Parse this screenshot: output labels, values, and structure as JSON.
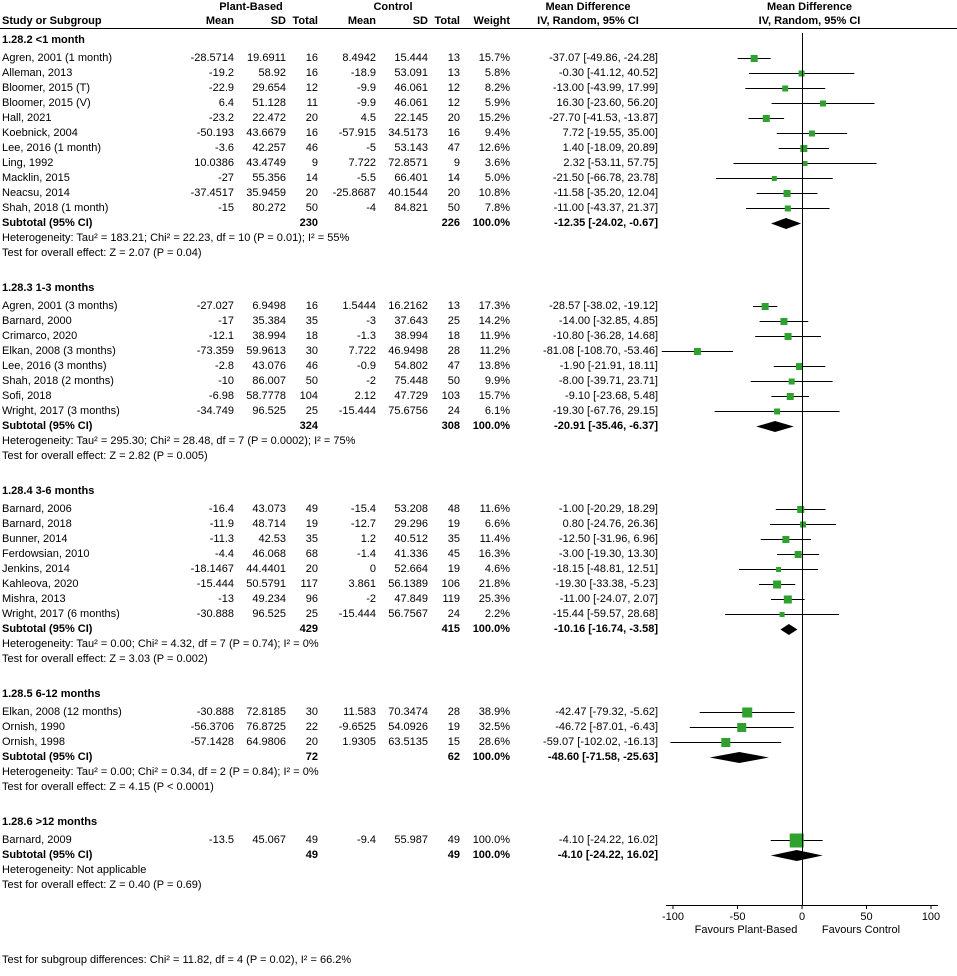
{
  "header": {
    "study": "Study or Subgroup",
    "group1": "Plant-Based",
    "group2": "Control",
    "mean": "Mean",
    "sd": "SD",
    "total": "Total",
    "weight": "Weight",
    "md": "Mean Difference",
    "ci": "IV, Random, 95% CI"
  },
  "chart_data": {
    "type": "forest",
    "marker_color": "#2EA12E",
    "diamond_color": "#000000",
    "axis": {
      "min": -100,
      "max": 100,
      "ticks": [
        -100,
        -50,
        0,
        50,
        100
      ]
    },
    "favours_left": "Favours Plant-Based",
    "favours_right": "Favours Control",
    "subgroups": [
      {
        "label": "1.28.2 <1 month",
        "studies": [
          {
            "name": "Agren, 2001 (1 month)",
            "cells": [
              "-28.5714",
              "19.6911",
              "16",
              "8.4942",
              "15.444",
              "13",
              "15.7%",
              "-37.07 [-49.86, -24.28]"
            ],
            "est": -37.07,
            "lo": -49.86,
            "hi": -24.28,
            "w": 15.7
          },
          {
            "name": "Alleman, 2013",
            "cells": [
              "-19.2",
              "58.92",
              "16",
              "-18.9",
              "53.091",
              "13",
              "5.8%",
              "-0.30 [-41.12, 40.52]"
            ],
            "est": -0.3,
            "lo": -41.12,
            "hi": 40.52,
            "w": 5.8
          },
          {
            "name": "Bloomer, 2015 (T)",
            "cells": [
              "-22.9",
              "29.654",
              "12",
              "-9.9",
              "46.061",
              "12",
              "8.2%",
              "-13.00 [-43.99, 17.99]"
            ],
            "est": -13.0,
            "lo": -43.99,
            "hi": 17.99,
            "w": 8.2
          },
          {
            "name": "Bloomer, 2015 (V)",
            "cells": [
              "6.4",
              "51.128",
              "11",
              "-9.9",
              "46.061",
              "12",
              "5.9%",
              "16.30 [-23.60, 56.20]"
            ],
            "est": 16.3,
            "lo": -23.6,
            "hi": 56.2,
            "w": 5.9
          },
          {
            "name": "Hall, 2021",
            "cells": [
              "-23.2",
              "22.472",
              "20",
              "4.5",
              "22.145",
              "20",
              "15.2%",
              "-27.70 [-41.53, -13.87]"
            ],
            "est": -27.7,
            "lo": -41.53,
            "hi": -13.87,
            "w": 15.2
          },
          {
            "name": "Koebnick, 2004",
            "cells": [
              "-50.193",
              "43.6679",
              "16",
              "-57.915",
              "34.5173",
              "16",
              "9.4%",
              "7.72 [-19.55, 35.00]"
            ],
            "est": 7.72,
            "lo": -19.55,
            "hi": 35.0,
            "w": 9.4
          },
          {
            "name": "Lee, 2016 (1 month)",
            "cells": [
              "-3.6",
              "42.257",
              "46",
              "-5",
              "53.143",
              "47",
              "12.6%",
              "1.40 [-18.09, 20.89]"
            ],
            "est": 1.4,
            "lo": -18.09,
            "hi": 20.89,
            "w": 12.6
          },
          {
            "name": "Ling, 1992",
            "cells": [
              "10.0386",
              "43.4749",
              "9",
              "7.722",
              "72.8571",
              "9",
              "3.6%",
              "2.32 [-53.11, 57.75]"
            ],
            "est": 2.32,
            "lo": -53.11,
            "hi": 57.75,
            "w": 3.6
          },
          {
            "name": "Macklin, 2015",
            "cells": [
              "-27",
              "55.356",
              "14",
              "-5.5",
              "66.401",
              "14",
              "5.0%",
              "-21.50 [-66.78, 23.78]"
            ],
            "est": -21.5,
            "lo": -66.78,
            "hi": 23.78,
            "w": 5.0
          },
          {
            "name": "Neacsu, 2014",
            "cells": [
              "-37.4517",
              "35.9459",
              "20",
              "-25.8687",
              "40.1544",
              "20",
              "10.8%",
              "-11.58 [-35.20, 12.04]"
            ],
            "est": -11.58,
            "lo": -35.2,
            "hi": 12.04,
            "w": 10.8
          },
          {
            "name": "Shah, 2018 (1 month)",
            "cells": [
              "-15",
              "80.272",
              "50",
              "-4",
              "84.821",
              "50",
              "7.8%",
              "-11.00 [-43.37, 21.37]"
            ],
            "est": -11.0,
            "lo": -43.37,
            "hi": 21.37,
            "w": 7.8
          }
        ],
        "subtotal": {
          "label": "Subtotal (95% CI)",
          "n1": "230",
          "n2": "226",
          "weight": "100.0%",
          "md": "-12.35 [-24.02, -0.67]",
          "est": -12.35,
          "lo": -24.02,
          "hi": -0.67
        },
        "heterogeneity": "Heterogeneity: Tau² = 183.21; Chi² = 22.23, df = 10 (P = 0.01); I² = 55%",
        "overall_effect": "Test for overall effect: Z = 2.07 (P = 0.04)"
      },
      {
        "label": "1.28.3 1-3 months",
        "studies": [
          {
            "name": "Agren, 2001 (3 months)",
            "cells": [
              "-27.027",
              "6.9498",
              "16",
              "1.5444",
              "16.2162",
              "13",
              "17.3%",
              "-28.57 [-38.02, -19.12]"
            ],
            "est": -28.57,
            "lo": -38.02,
            "hi": -19.12,
            "w": 17.3
          },
          {
            "name": "Barnard, 2000",
            "cells": [
              "-17",
              "35.384",
              "35",
              "-3",
              "37.643",
              "25",
              "14.2%",
              "-14.00 [-32.85, 4.85]"
            ],
            "est": -14.0,
            "lo": -32.85,
            "hi": 4.85,
            "w": 14.2
          },
          {
            "name": "Crimarco, 2020",
            "cells": [
              "-12.1",
              "38.994",
              "18",
              "-1.3",
              "38.994",
              "18",
              "11.9%",
              "-10.80 [-36.28, 14.68]"
            ],
            "est": -10.8,
            "lo": -36.28,
            "hi": 14.68,
            "w": 11.9
          },
          {
            "name": "Elkan, 2008 (3 months)",
            "cells": [
              "-73.359",
              "59.9613",
              "30",
              "7.722",
              "46.9498",
              "28",
              "11.2%",
              "-81.08 [-108.70, -53.46]"
            ],
            "est": -81.08,
            "lo": -108.7,
            "hi": -53.46,
            "w": 11.2
          },
          {
            "name": "Lee, 2016 (3 months)",
            "cells": [
              "-2.8",
              "43.076",
              "46",
              "-0.9",
              "54.802",
              "47",
              "13.8%",
              "-1.90 [-21.91, 18.11]"
            ],
            "est": -1.9,
            "lo": -21.91,
            "hi": 18.11,
            "w": 13.8
          },
          {
            "name": "Shah, 2018 (2 months)",
            "cells": [
              "-10",
              "86.007",
              "50",
              "-2",
              "75.448",
              "50",
              "9.9%",
              "-8.00 [-39.71, 23.71]"
            ],
            "est": -8.0,
            "lo": -39.71,
            "hi": 23.71,
            "w": 9.9
          },
          {
            "name": "Sofi, 2018",
            "cells": [
              "-6.98",
              "58.7778",
              "104",
              "2.12",
              "47.729",
              "103",
              "15.7%",
              "-9.10 [-23.68, 5.48]"
            ],
            "est": -9.1,
            "lo": -23.68,
            "hi": 5.48,
            "w": 15.7
          },
          {
            "name": "Wright, 2017 (3 months)",
            "cells": [
              "-34.749",
              "96.525",
              "25",
              "-15.444",
              "75.6756",
              "24",
              "6.1%",
              "-19.30 [-67.76, 29.15]"
            ],
            "est": -19.3,
            "lo": -67.76,
            "hi": 29.15,
            "w": 6.1
          }
        ],
        "subtotal": {
          "label": "Subtotal (95% CI)",
          "n1": "324",
          "n2": "308",
          "weight": "100.0%",
          "md": "-20.91 [-35.46, -6.37]",
          "est": -20.91,
          "lo": -35.46,
          "hi": -6.37
        },
        "heterogeneity": "Heterogeneity: Tau² = 295.30; Chi² = 28.48, df = 7 (P = 0.0002); I² = 75%",
        "overall_effect": "Test for overall effect: Z = 2.82 (P = 0.005)"
      },
      {
        "label": "1.28.4 3-6 months",
        "studies": [
          {
            "name": "Barnard, 2006",
            "cells": [
              "-16.4",
              "43.073",
              "49",
              "-15.4",
              "53.208",
              "48",
              "11.6%",
              "-1.00 [-20.29, 18.29]"
            ],
            "est": -1.0,
            "lo": -20.29,
            "hi": 18.29,
            "w": 11.6
          },
          {
            "name": "Barnard, 2018",
            "cells": [
              "-11.9",
              "48.714",
              "19",
              "-12.7",
              "29.296",
              "19",
              "6.6%",
              "0.80 [-24.76, 26.36]"
            ],
            "est": 0.8,
            "lo": -24.76,
            "hi": 26.36,
            "w": 6.6
          },
          {
            "name": "Bunner, 2014",
            "cells": [
              "-11.3",
              "42.53",
              "35",
              "1.2",
              "40.512",
              "35",
              "11.4%",
              "-12.50 [-31.96, 6.96]"
            ],
            "est": -12.5,
            "lo": -31.96,
            "hi": 6.96,
            "w": 11.4
          },
          {
            "name": "Ferdowsian, 2010",
            "cells": [
              "-4.4",
              "46.068",
              "68",
              "-1.4",
              "41.336",
              "45",
              "16.3%",
              "-3.00 [-19.30, 13.30]"
            ],
            "est": -3.0,
            "lo": -19.3,
            "hi": 13.3,
            "w": 16.3
          },
          {
            "name": "Jenkins, 2014",
            "cells": [
              "-18.1467",
              "44.4401",
              "20",
              "0",
              "52.664",
              "19",
              "4.6%",
              "-18.15 [-48.81, 12.51]"
            ],
            "est": -18.15,
            "lo": -48.81,
            "hi": 12.51,
            "w": 4.6
          },
          {
            "name": "Kahleova, 2020",
            "cells": [
              "-15.444",
              "50.5791",
              "117",
              "3.861",
              "56.1389",
              "106",
              "21.8%",
              "-19.30 [-33.38, -5.23]"
            ],
            "est": -19.3,
            "lo": -33.38,
            "hi": -5.23,
            "w": 21.8
          },
          {
            "name": "Mishra, 2013",
            "cells": [
              "-13",
              "49.234",
              "96",
              "-2",
              "47.849",
              "119",
              "25.3%",
              "-11.00 [-24.07, 2.07]"
            ],
            "est": -11.0,
            "lo": -24.07,
            "hi": 2.07,
            "w": 25.3
          },
          {
            "name": "Wright, 2017 (6 months)",
            "cells": [
              "-30.888",
              "96.525",
              "25",
              "-15.444",
              "56.7567",
              "24",
              "2.2%",
              "-15.44 [-59.57, 28.68]"
            ],
            "est": -15.44,
            "lo": -59.57,
            "hi": 28.68,
            "w": 2.2
          }
        ],
        "subtotal": {
          "label": "Subtotal (95% CI)",
          "n1": "429",
          "n2": "415",
          "weight": "100.0%",
          "md": "-10.16 [-16.74, -3.58]",
          "est": -10.16,
          "lo": -16.74,
          "hi": -3.58
        },
        "heterogeneity": "Heterogeneity: Tau² = 0.00; Chi² = 4.32, df = 7 (P = 0.74); I² = 0%",
        "overall_effect": "Test for overall effect: Z = 3.03 (P = 0.002)"
      },
      {
        "label": "1.28.5 6-12 months",
        "studies": [
          {
            "name": "Elkan, 2008 (12 months)",
            "cells": [
              "-30.888",
              "72.8185",
              "30",
              "11.583",
              "70.3474",
              "28",
              "38.9%",
              "-42.47 [-79.32, -5.62]"
            ],
            "est": -42.47,
            "lo": -79.32,
            "hi": -5.62,
            "w": 38.9
          },
          {
            "name": "Ornish, 1990",
            "cells": [
              "-56.3706",
              "76.8725",
              "22",
              "-9.6525",
              "54.0926",
              "19",
              "32.5%",
              "-46.72 [-87.01, -6.43]"
            ],
            "est": -46.72,
            "lo": -87.01,
            "hi": -6.43,
            "w": 32.5
          },
          {
            "name": "Ornish, 1998",
            "cells": [
              "-57.1428",
              "64.9806",
              "20",
              "1.9305",
              "63.5135",
              "15",
              "28.6%",
              "-59.07 [-102.02, -16.13]"
            ],
            "est": -59.07,
            "lo": -102.02,
            "hi": -16.13,
            "w": 28.6
          }
        ],
        "subtotal": {
          "label": "Subtotal (95% CI)",
          "n1": "72",
          "n2": "62",
          "weight": "100.0%",
          "md": "-48.60 [-71.58, -25.63]",
          "est": -48.6,
          "lo": -71.58,
          "hi": -25.63
        },
        "heterogeneity": "Heterogeneity: Tau² = 0.00; Chi² = 0.34, df = 2 (P = 0.84); I² = 0%",
        "overall_effect": "Test for overall effect: Z = 4.15 (P < 0.0001)"
      },
      {
        "label": "1.28.6 >12 months",
        "studies": [
          {
            "name": "Barnard, 2009",
            "cells": [
              "-13.5",
              "45.067",
              "49",
              "-9.4",
              "55.987",
              "49",
              "100.0%",
              "-4.10 [-24.22, 16.02]"
            ],
            "est": -4.1,
            "lo": -24.22,
            "hi": 16.02,
            "w": 100.0
          }
        ],
        "subtotal": {
          "label": "Subtotal (95% CI)",
          "n1": "49",
          "n2": "49",
          "weight": "100.0%",
          "md": "-4.10 [-24.22, 16.02]",
          "est": -4.1,
          "lo": -24.22,
          "hi": 16.02
        },
        "heterogeneity": "Heterogeneity: Not applicable",
        "overall_effect": "Test for overall effect: Z = 0.40 (P = 0.69)"
      }
    ]
  },
  "footer": {
    "subgroup_test": "Test for subgroup differences: Chi² = 11.82, df = 4 (P = 0.02), I² = 66.2%"
  }
}
